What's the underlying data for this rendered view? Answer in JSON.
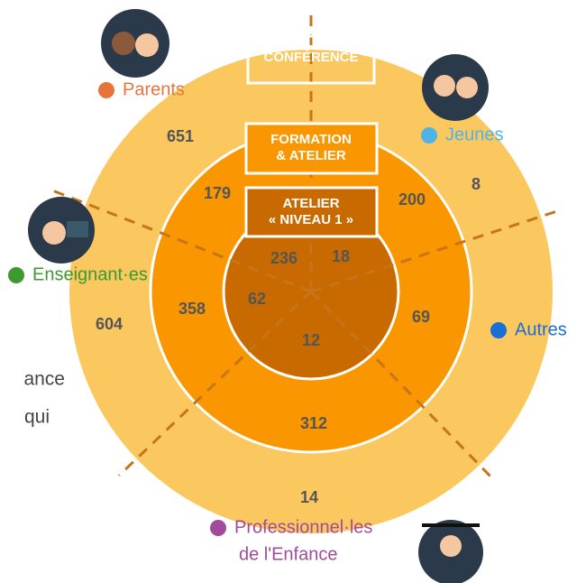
{
  "levels": [
    {
      "label": [
        "CONFÉRENCE"
      ]
    },
    {
      "label": [
        "FORMATION",
        "& ATELIER"
      ]
    },
    {
      "label": [
        "ATELIER",
        "« NIVEAU 1 »"
      ]
    }
  ],
  "groups": [
    {
      "name": [
        "Parents"
      ],
      "color": "#e8743b",
      "values": [
        651,
        179,
        236
      ]
    },
    {
      "name": [
        "Jeunes"
      ],
      "color": "#4fb3e8",
      "values": [
        8,
        200,
        18
      ]
    },
    {
      "name": [
        "Autres"
      ],
      "color": "#1a6fd6",
      "values": [
        null,
        69,
        null
      ]
    },
    {
      "name": [
        "Professionnel·les",
        "de l'Enfance"
      ],
      "color": "#a24b9c",
      "values": [
        14,
        312,
        12
      ]
    },
    {
      "name": [
        "Enseignant·es"
      ],
      "color": "#3d9a2e",
      "values": [
        604,
        358,
        62
      ]
    }
  ],
  "fragments": [
    "ance",
    "qui"
  ]
}
